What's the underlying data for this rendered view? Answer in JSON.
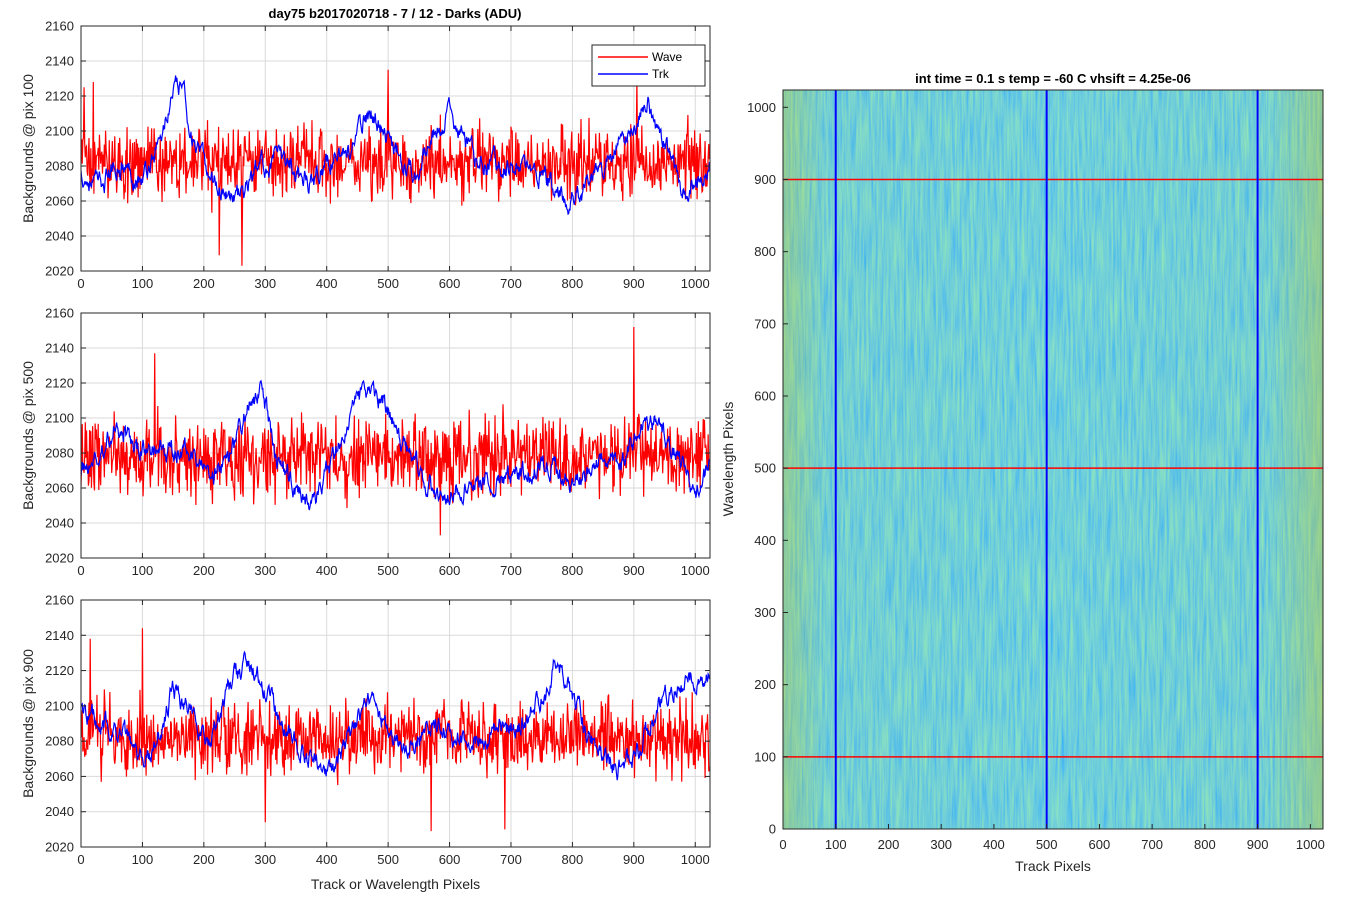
{
  "figure_title": "day75 b2017020718 - 7 / 12 - Darks (ADU)",
  "legend": {
    "entries": [
      "Wave",
      "Trk"
    ]
  },
  "colors": {
    "wave": "#ff0000",
    "trk": "#0000ff"
  },
  "chart_data": [
    {
      "type": "line",
      "ylabel": "Backgrounds @ pix 100",
      "xlabel": "",
      "xlim": [
        0,
        1024
      ],
      "ylim": [
        2020,
        2160
      ],
      "xticks": [
        0,
        100,
        200,
        300,
        400,
        500,
        600,
        700,
        800,
        900,
        1000
      ],
      "yticks": [
        2020,
        2040,
        2060,
        2080,
        2100,
        2120,
        2140,
        2160
      ],
      "grid": true,
      "legend_position": "top-right",
      "series": [
        {
          "name": "Wave",
          "color": "#ff0000",
          "mean": 2082,
          "spread": 16,
          "peaks": [
            [
              5,
              2125
            ],
            [
              20,
              2128
            ],
            [
              225,
              2029
            ],
            [
              262,
              2023
            ],
            [
              500,
              2135
            ],
            [
              905,
              2130
            ]
          ]
        },
        {
          "name": "Trk",
          "color": "#0000ff",
          "mean": 2082,
          "spread": 4,
          "trend": [
            [
              0,
              2075
            ],
            [
              30,
              2068
            ],
            [
              60,
              2082
            ],
            [
              100,
              2072
            ],
            [
              130,
              2095
            ],
            [
              150,
              2122
            ],
            [
              165,
              2125
            ],
            [
              185,
              2090
            ],
            [
              220,
              2070
            ],
            [
              260,
              2062
            ],
            [
              290,
              2080
            ],
            [
              330,
              2085
            ],
            [
              370,
              2072
            ],
            [
              400,
              2082
            ],
            [
              440,
              2090
            ],
            [
              470,
              2112
            ],
            [
              500,
              2095
            ],
            [
              540,
              2078
            ],
            [
              600,
              2110
            ],
            [
              640,
              2085
            ],
            [
              680,
              2082
            ],
            [
              720,
              2078
            ],
            [
              760,
              2072
            ],
            [
              790,
              2060
            ],
            [
              830,
              2070
            ],
            [
              870,
              2090
            ],
            [
              900,
              2100
            ],
            [
              920,
              2120
            ],
            [
              950,
              2092
            ],
            [
              980,
              2068
            ],
            [
              1000,
              2072
            ],
            [
              1024,
              2082
            ]
          ]
        }
      ]
    },
    {
      "type": "line",
      "ylabel": "Backgrounds @ pix 500",
      "xlabel": "",
      "xlim": [
        0,
        1024
      ],
      "ylim": [
        2020,
        2160
      ],
      "xticks": [
        0,
        100,
        200,
        300,
        400,
        500,
        600,
        700,
        800,
        900,
        1000
      ],
      "yticks": [
        2020,
        2040,
        2060,
        2080,
        2100,
        2120,
        2140,
        2160
      ],
      "grid": true,
      "series": [
        {
          "name": "Wave",
          "color": "#ff0000",
          "mean": 2078,
          "spread": 17,
          "peaks": [
            [
              120,
              2137
            ],
            [
              585,
              2033
            ],
            [
              900,
              2152
            ]
          ]
        },
        {
          "name": "Trk",
          "color": "#0000ff",
          "mean": 2078,
          "spread": 4,
          "trend": [
            [
              0,
              2070
            ],
            [
              30,
              2078
            ],
            [
              60,
              2100
            ],
            [
              90,
              2080
            ],
            [
              140,
              2083
            ],
            [
              180,
              2080
            ],
            [
              210,
              2065
            ],
            [
              240,
              2075
            ],
            [
              270,
              2105
            ],
            [
              295,
              2118
            ],
            [
              320,
              2075
            ],
            [
              350,
              2060
            ],
            [
              380,
              2050
            ],
            [
              420,
              2085
            ],
            [
              450,
              2112
            ],
            [
              490,
              2112
            ],
            [
              530,
              2080
            ],
            [
              570,
              2060
            ],
            [
              600,
              2055
            ],
            [
              640,
              2062
            ],
            [
              700,
              2065
            ],
            [
              760,
              2075
            ],
            [
              800,
              2063
            ],
            [
              850,
              2080
            ],
            [
              880,
              2072
            ],
            [
              910,
              2090
            ],
            [
              940,
              2100
            ],
            [
              980,
              2075
            ],
            [
              1000,
              2055
            ],
            [
              1024,
              2075
            ]
          ]
        }
      ]
    },
    {
      "type": "line",
      "ylabel": "Backgrounds @ pix 900",
      "xlabel": "Track or Wavelength Pixels",
      "xlim": [
        0,
        1024
      ],
      "ylim": [
        2020,
        2160
      ],
      "xticks": [
        0,
        100,
        200,
        300,
        400,
        500,
        600,
        700,
        800,
        900,
        1000
      ],
      "yticks": [
        2020,
        2040,
        2060,
        2080,
        2100,
        2120,
        2140,
        2160
      ],
      "grid": true,
      "series": [
        {
          "name": "Wave",
          "color": "#ff0000",
          "mean": 2082,
          "spread": 16,
          "peaks": [
            [
              15,
              2138
            ],
            [
              100,
              2144
            ],
            [
              300,
              2034
            ],
            [
              570,
              2029
            ],
            [
              690,
              2030
            ]
          ]
        },
        {
          "name": "Trk",
          "color": "#0000ff",
          "mean": 2084,
          "spread": 4,
          "trend": [
            [
              0,
              2100
            ],
            [
              30,
              2090
            ],
            [
              70,
              2085
            ],
            [
              100,
              2070
            ],
            [
              120,
              2075
            ],
            [
              150,
              2110
            ],
            [
              180,
              2095
            ],
            [
              210,
              2075
            ],
            [
              240,
              2110
            ],
            [
              270,
              2125
            ],
            [
              300,
              2110
            ],
            [
              330,
              2085
            ],
            [
              360,
              2075
            ],
            [
              400,
              2060
            ],
            [
              440,
              2083
            ],
            [
              470,
              2105
            ],
            [
              500,
              2085
            ],
            [
              540,
              2078
            ],
            [
              580,
              2090
            ],
            [
              620,
              2080
            ],
            [
              680,
              2085
            ],
            [
              720,
              2090
            ],
            [
              760,
              2110
            ],
            [
              775,
              2130
            ],
            [
              790,
              2115
            ],
            [
              830,
              2080
            ],
            [
              870,
              2065
            ],
            [
              900,
              2070
            ],
            [
              950,
              2105
            ],
            [
              990,
              2115
            ],
            [
              1024,
              2115
            ]
          ]
        }
      ]
    },
    {
      "type": "heatmap",
      "title": "int time = 0.1 s   temp = -60 C   vhsift = 4.25e-06",
      "xlabel": "Track Pixels",
      "ylabel": "Wavelength Pixels",
      "xlim": [
        0,
        1024
      ],
      "ylim": [
        0,
        1024
      ],
      "xticks": [
        0,
        100,
        200,
        300,
        400,
        500,
        600,
        700,
        800,
        900,
        1000
      ],
      "yticks": [
        0,
        100,
        200,
        300,
        400,
        500,
        600,
        700,
        800,
        900,
        1000
      ],
      "colormap": "parula",
      "marker_lines": {
        "vertical_x": [
          100,
          500,
          900
        ],
        "vertical_color": "#0000ff",
        "horizontal_y": [
          100,
          500,
          900
        ],
        "horizontal_color": "#ff0000"
      }
    }
  ]
}
